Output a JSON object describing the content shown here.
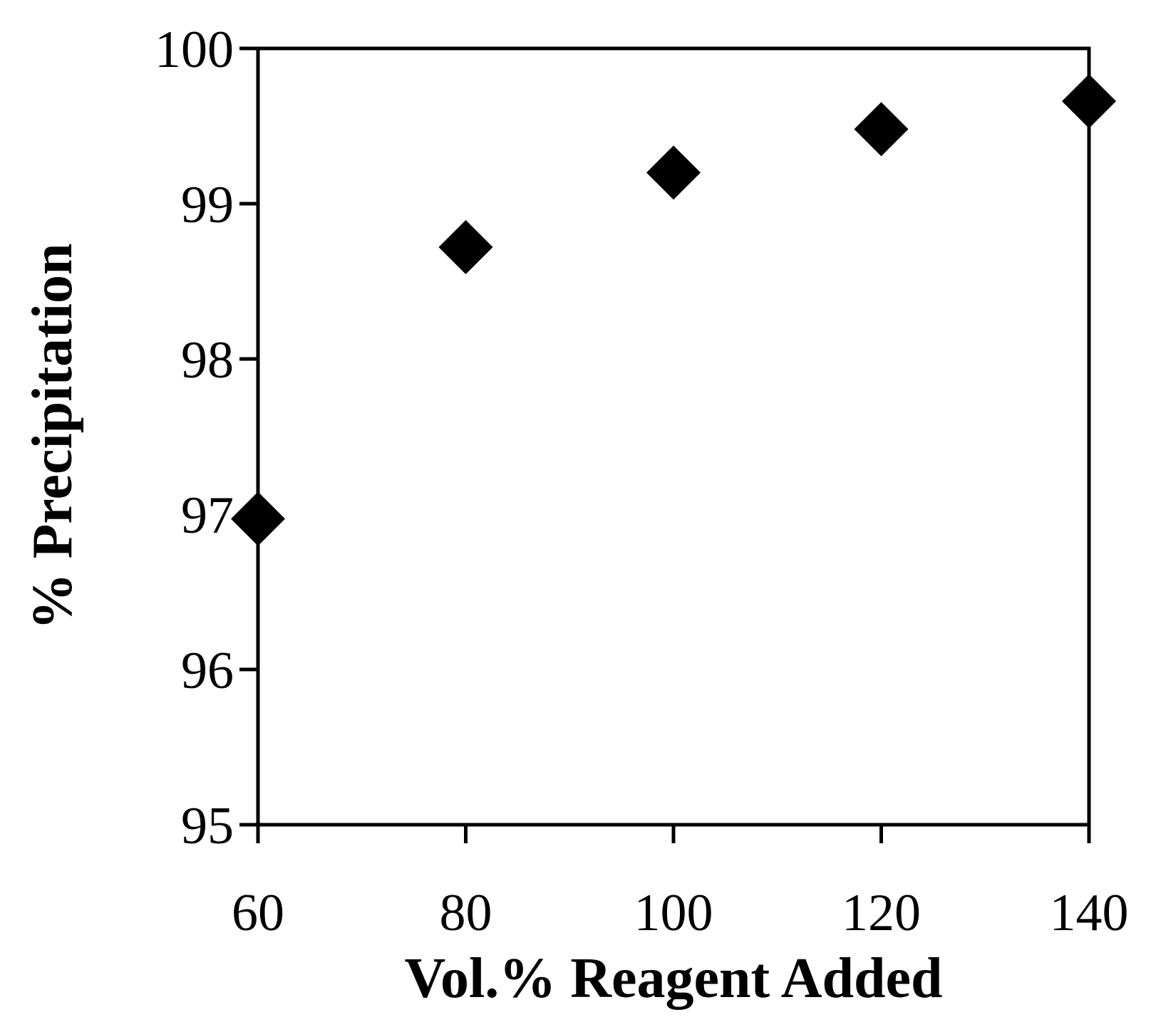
{
  "chart_data": {
    "type": "scatter",
    "title": "",
    "xlabel": "Vol.% Reagent Added",
    "ylabel": "% Precipitation",
    "xlim": [
      60,
      140
    ],
    "ylim": [
      95,
      100
    ],
    "x_ticks": [
      60,
      80,
      100,
      120,
      140
    ],
    "y_ticks": [
      95,
      96,
      97,
      98,
      99,
      100
    ],
    "grid": false,
    "legend": "none",
    "marker": "diamond",
    "marker_color": "#000000",
    "series": [
      {
        "x": [
          60,
          80,
          100,
          120,
          140
        ],
        "y": [
          96.97,
          98.72,
          99.2,
          99.48,
          99.66
        ]
      }
    ]
  }
}
